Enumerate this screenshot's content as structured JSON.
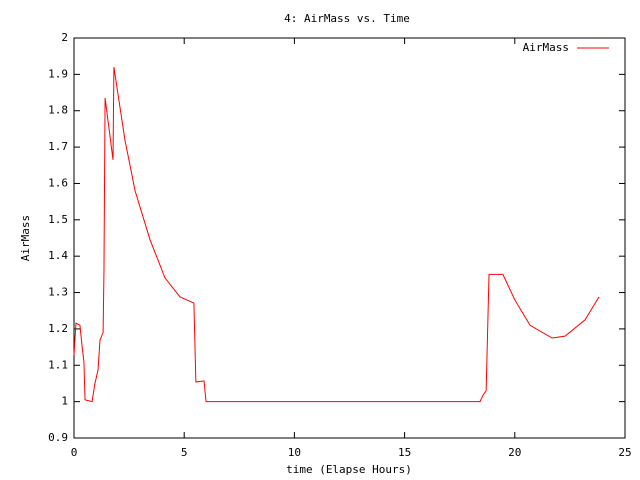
{
  "chart_data": {
    "type": "line",
    "title": "4: AirMass vs. Time",
    "xlabel": "time (Elapse Hours)",
    "ylabel": "AirMass",
    "x": [
      0,
      0.09,
      0.27,
      0.36,
      0.45,
      0.5,
      0.82,
      0.95,
      1.09,
      1.18,
      1.32,
      1.36,
      1.41,
      1.77,
      1.81,
      2.31,
      2.77,
      3.45,
      4.13,
      4.81,
      5.44,
      5.53,
      5.9,
      5.99,
      18.42,
      18.56,
      18.7,
      18.83,
      19.46,
      20.0,
      20.69,
      21.69,
      22.28,
      23.19,
      23.82
    ],
    "series": [
      {
        "name": "AirMass",
        "color": "#ff0000",
        "values": [
          1.128,
          1.216,
          1.21,
          1.156,
          1.11,
          1.005,
          1.0,
          1.05,
          1.087,
          1.17,
          1.19,
          1.36,
          1.835,
          1.665,
          1.92,
          1.72,
          1.58,
          1.445,
          1.34,
          1.288,
          1.271,
          1.054,
          1.057,
          1.0,
          1.0,
          1.018,
          1.03,
          1.35,
          1.35,
          1.28,
          1.21,
          1.175,
          1.18,
          1.225,
          1.288
        ]
      }
    ],
    "xlim": [
      0,
      25
    ],
    "xticks": [
      0,
      5,
      10,
      15,
      20,
      25
    ],
    "ylim": [
      0.9,
      2
    ],
    "yticks": [
      0.9,
      1,
      1.1,
      1.2,
      1.3,
      1.4,
      1.5,
      1.6,
      1.7,
      1.8,
      1.9,
      2
    ],
    "grid": false,
    "legend": "upper right"
  }
}
